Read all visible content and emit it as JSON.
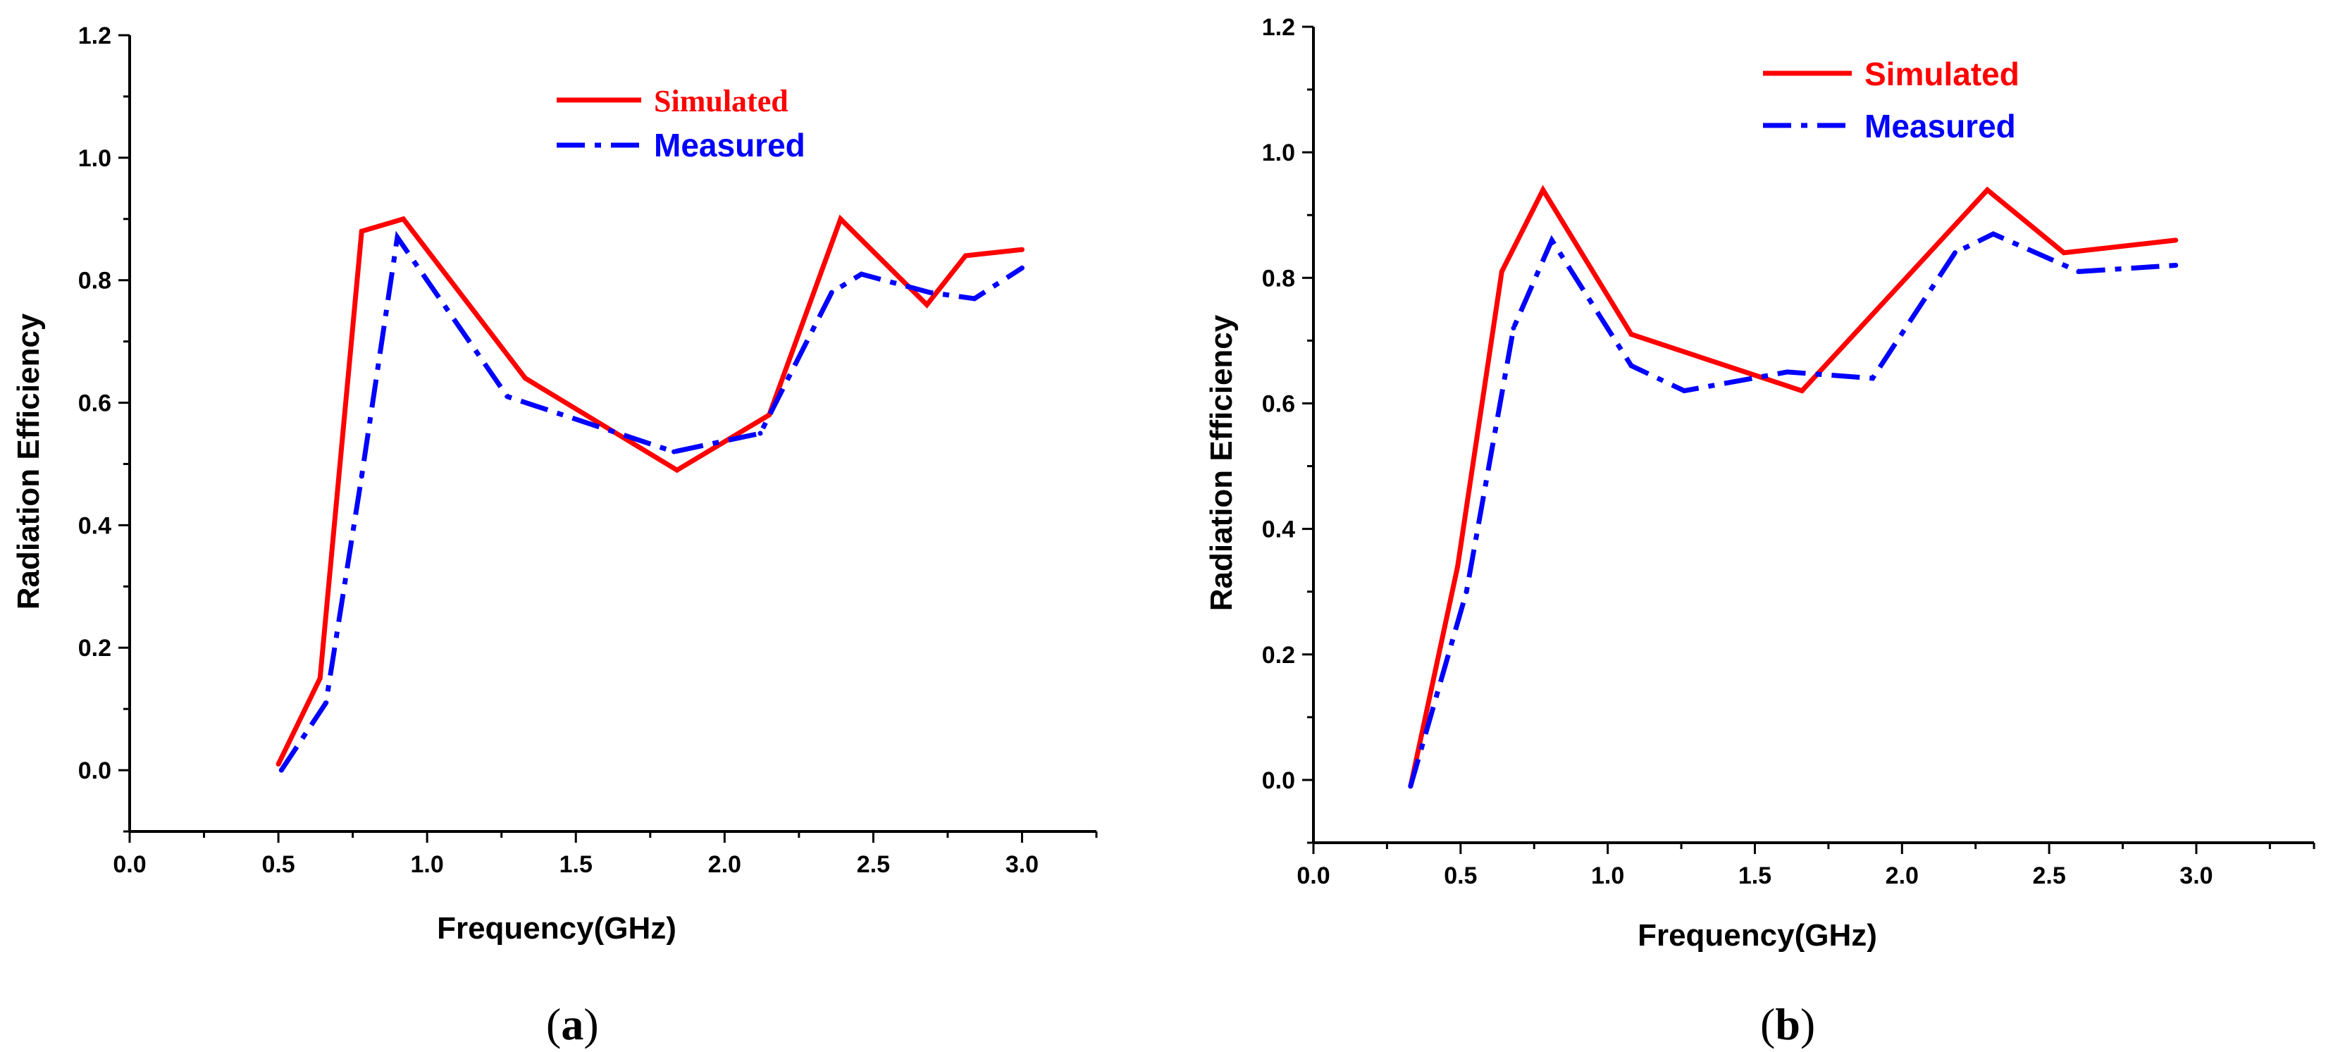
{
  "chart_data": [
    {
      "type": "line",
      "panel": "a",
      "caption": {
        "open": "(",
        "letter": "a",
        "close": ")"
      },
      "xlabel": "Frequency(GHz)",
      "ylabel": "Radiation Efficiency",
      "xlim": [
        0.0,
        3.25
      ],
      "ylim": [
        -0.1,
        1.2
      ],
      "xticks": [
        0.0,
        0.5,
        1.0,
        1.5,
        2.0,
        2.5,
        3.0
      ],
      "xtick_labels": [
        "0.0",
        "0.5",
        "1.0",
        "1.5",
        "2.0",
        "2.5",
        "3.0"
      ],
      "yticks": [
        0.0,
        0.2,
        0.4,
        0.6,
        0.8,
        1.0,
        1.2
      ],
      "ytick_labels": [
        "0.0",
        "0.2",
        "0.4",
        "0.6",
        "0.8",
        "1.0",
        "1.2"
      ],
      "grid": false,
      "legend_position": "top-center",
      "series": [
        {
          "name": "Simulated",
          "color": "#ff0000",
          "style": "solid",
          "x": [
            0.5,
            0.64,
            0.78,
            0.92,
            1.33,
            1.84,
            2.15,
            2.39,
            2.68,
            2.81,
            3.0
          ],
          "y": [
            0.01,
            0.15,
            0.88,
            0.9,
            0.64,
            0.49,
            0.58,
            0.9,
            0.76,
            0.84,
            0.85
          ]
        },
        {
          "name": "Measured",
          "color": "#0000ff",
          "style": "dashdot",
          "x": [
            0.51,
            0.66,
            0.78,
            0.9,
            1.27,
            1.83,
            2.12,
            2.36,
            2.46,
            2.69,
            2.84,
            3.0
          ],
          "y": [
            0.0,
            0.11,
            0.48,
            0.87,
            0.61,
            0.52,
            0.55,
            0.78,
            0.81,
            0.78,
            0.77,
            0.82
          ]
        }
      ]
    },
    {
      "type": "line",
      "panel": "b",
      "caption": {
        "open": "(",
        "letter": "b",
        "close": ")"
      },
      "xlabel": "Frequency(GHz)",
      "ylabel": "Radiation Efficiency",
      "xlim": [
        0.0,
        3.4
      ],
      "ylim": [
        -0.1,
        1.2
      ],
      "xticks": [
        0.0,
        0.5,
        1.0,
        1.5,
        2.0,
        2.5,
        3.0
      ],
      "xtick_labels": [
        "0.0",
        "0.5",
        "1.0",
        "1.5",
        "2.0",
        "2.5",
        "3.0"
      ],
      "yticks": [
        0.0,
        0.2,
        0.4,
        0.6,
        0.8,
        1.0,
        1.2
      ],
      "ytick_labels": [
        "0.0",
        "0.2",
        "0.4",
        "0.6",
        "0.8",
        "1.0",
        "1.2"
      ],
      "grid": false,
      "legend_position": "top-center",
      "series": [
        {
          "name": "Simulated",
          "color": "#ff0000",
          "style": "solid",
          "x": [
            0.33,
            0.49,
            0.64,
            0.78,
            1.08,
            1.66,
            2.29,
            2.55,
            2.93
          ],
          "y": [
            -0.01,
            0.34,
            0.81,
            0.94,
            0.71,
            0.62,
            0.94,
            0.84,
            0.86
          ]
        },
        {
          "name": "Measured",
          "color": "#0000ff",
          "style": "dashdot",
          "x": [
            0.33,
            0.52,
            0.68,
            0.81,
            1.08,
            1.26,
            1.61,
            1.9,
            2.18,
            2.31,
            2.6,
            2.93
          ],
          "y": [
            -0.01,
            0.3,
            0.72,
            0.86,
            0.66,
            0.62,
            0.65,
            0.64,
            0.84,
            0.87,
            0.81,
            0.82
          ]
        }
      ]
    }
  ]
}
